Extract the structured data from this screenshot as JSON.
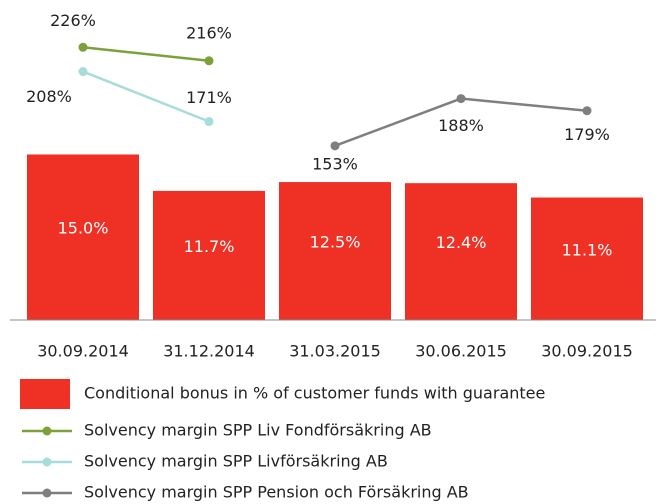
{
  "chart_data": {
    "type": "bar",
    "categories": [
      "30.09.2014",
      "31.12.2014",
      "31.03.2015",
      "30.06.2015",
      "30.09.2015"
    ],
    "ylim": [
      0,
      29
    ],
    "y2lim": [
      24,
      261
    ],
    "series": [
      {
        "name": "Conditional bonus in % of customer funds with guarantee",
        "type": "bar",
        "color": "#ee3124",
        "values": [
          15.0,
          11.7,
          12.5,
          12.4,
          11.1
        ],
        "value_labels": [
          "15.0%",
          "11.7%",
          "12.5%",
          "12.4%",
          "11.1%"
        ]
      },
      {
        "name": "Solvency margin SPP Liv Fondförsäkring AB",
        "type": "line",
        "axis": "y2",
        "color": "#7da13a",
        "values": [
          226,
          216,
          null,
          null,
          null
        ],
        "value_labels": [
          "226%",
          "216%",
          null,
          null,
          null
        ]
      },
      {
        "name": "Solvency margin SPP Livförsäkring AB",
        "type": "line",
        "axis": "y2",
        "color": "#a8dcd9",
        "values": [
          208,
          171,
          null,
          null,
          null
        ],
        "value_labels": [
          "208%",
          "171%",
          null,
          null,
          null
        ]
      },
      {
        "name": "Solvency margin SPP Pension och Försäkring AB",
        "type": "line",
        "axis": "y2",
        "color": "#7f7f7f",
        "values": [
          null,
          null,
          153,
          188,
          179
        ],
        "value_labels": [
          null,
          null,
          "153%",
          "188%",
          "179%"
        ]
      }
    ]
  }
}
